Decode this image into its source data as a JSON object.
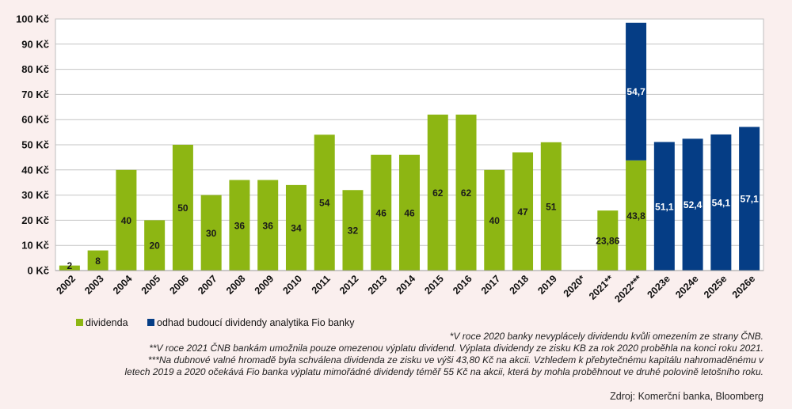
{
  "chart_data": {
    "type": "bar",
    "stacked": true,
    "categories": [
      "2002",
      "2003",
      "2004",
      "2005",
      "2006",
      "2007",
      "2008",
      "2009",
      "2010",
      "2011",
      "2012",
      "2013",
      "2014",
      "2015",
      "2016",
      "2017",
      "2018",
      "2019",
      "2020*",
      "2021**",
      "2022***",
      "2023e",
      "2024e",
      "2025e",
      "2026e"
    ],
    "series": [
      {
        "name": "dividenda",
        "color": "#8DB613",
        "values": [
          2,
          8,
          40,
          20,
          50,
          30,
          36,
          36,
          34,
          54,
          32,
          46,
          46,
          62,
          62,
          40,
          47,
          51,
          0,
          23.86,
          43.8,
          0,
          0,
          0,
          0
        ],
        "labels": [
          "2",
          "8",
          "40",
          "20",
          "50",
          "30",
          "36",
          "36",
          "34",
          "54",
          "32",
          "46",
          "46",
          "62",
          "62",
          "40",
          "47",
          "51",
          "",
          "23,86",
          "43,8",
          "",
          "",
          "",
          ""
        ]
      },
      {
        "name": "odhad budoucí dividendy analytika Fio banky",
        "color": "#053D85",
        "values": [
          0,
          0,
          0,
          0,
          0,
          0,
          0,
          0,
          0,
          0,
          0,
          0,
          0,
          0,
          0,
          0,
          0,
          0,
          0,
          0,
          54.7,
          51.1,
          52.4,
          54.1,
          57.1
        ],
        "labels": [
          "",
          "",
          "",
          "",
          "",
          "",
          "",
          "",
          "",
          "",
          "",
          "",
          "",
          "",
          "",
          "",
          "",
          "",
          "",
          "",
          "54,7",
          "51,1",
          "52,4",
          "54,1",
          "57,1"
        ]
      }
    ],
    "yticks": [
      "0 Kč",
      "10 Kč",
      "20 Kč",
      "30 Kč",
      "40 Kč",
      "50 Kč",
      "60 Kč",
      "70 Kč",
      "80 Kč",
      "90 Kč",
      "100 Kč"
    ],
    "ylim": [
      0,
      100
    ],
    "grid": true,
    "legend": "bottom-left",
    "title": "",
    "xlabel": "",
    "ylabel": ""
  },
  "footnotes": [
    "*V roce 2020 banky nevyplácely dividendu kvůli omezením ze strany ČNB.",
    "**V roce 2021 ČNB bankám umožnila pouze omezenou výplatu dividend. Výplata dividendy ze zisku KB za rok 2020 proběhla na konci roku 2021.",
    "***Na dubnové valné hromadě byla schválena dividenda ze zisku ve výši 43,80 Kč na akcii. Vzhledem k přebytečnému kapitálu nahromaděnému v",
    "letech 2019 a 2020 očekává Fio banka výplatu mimořádné dividendy téměř 55 Kč na akcii, která by mohla proběhnout ve druhé polovině letošního roku."
  ],
  "source": "Zdroj: Komerční banka, Bloomberg"
}
